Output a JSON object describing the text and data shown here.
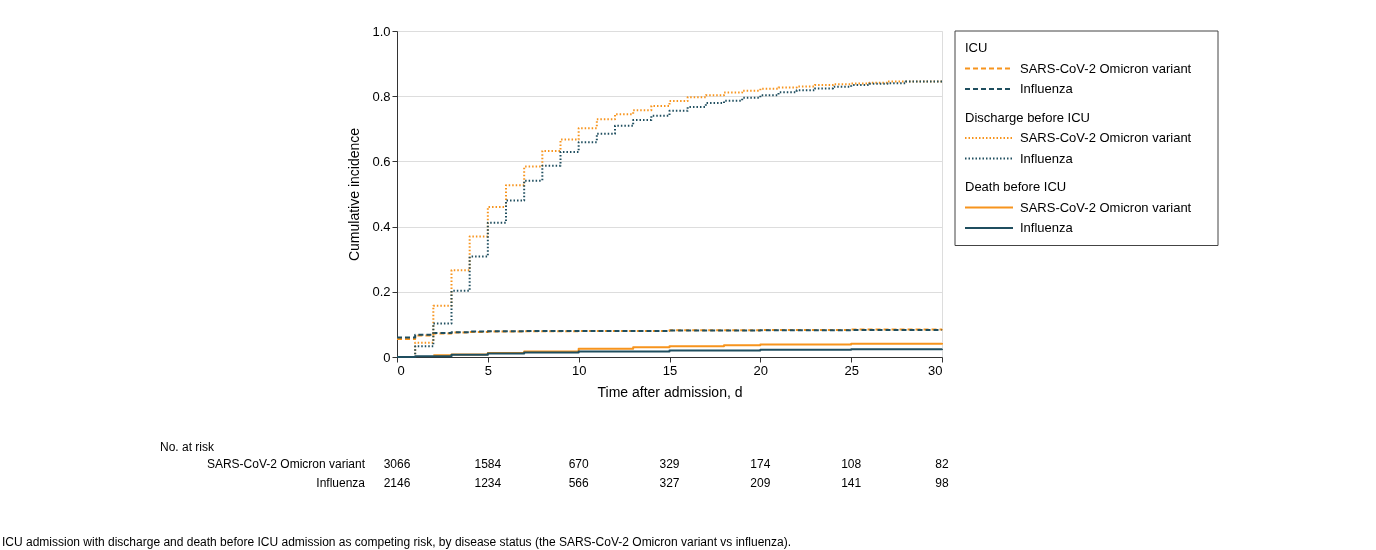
{
  "chart_data": {
    "type": "step",
    "xlabel": "Time after admission, d",
    "ylabel": "Cumulative incidence",
    "xlim": [
      0,
      30
    ],
    "xticks": [
      0,
      5,
      10,
      15,
      20,
      25,
      30
    ],
    "ylim": [
      0,
      1
    ],
    "yticks": [
      {
        "value": 0,
        "label": "0"
      },
      0.2,
      0.4,
      0.6,
      0.8,
      {
        "value": 1,
        "label": "1.0"
      }
    ],
    "grid": "y",
    "legend": "right",
    "series": [
      {
        "name": "SARS-CoV-2 Omicron variant",
        "color": "#f7941d",
        "line_style": "dashed",
        "x": [
          0,
          1,
          2,
          3,
          4,
          5,
          7,
          10,
          15,
          20,
          25,
          30
        ],
        "values": [
          0.055,
          0.066,
          0.072,
          0.075,
          0.077,
          0.078,
          0.079,
          0.08,
          0.082,
          0.083,
          0.084,
          0.085
        ]
      },
      {
        "name": "Influenza",
        "color": "#1f4e5f",
        "line_style": "dashed",
        "x": [
          0,
          1,
          2,
          3,
          4,
          5,
          7,
          10,
          15,
          20,
          25,
          30
        ],
        "values": [
          0.06,
          0.068,
          0.074,
          0.076,
          0.078,
          0.079,
          0.08,
          0.08,
          0.081,
          0.082,
          0.083,
          0.083
        ]
      },
      {
        "name": "SARS-CoV-2 Omicron variant",
        "color": "#f7941d",
        "line_style": "dotted",
        "x": [
          0,
          1,
          2,
          3,
          4,
          5,
          6,
          7,
          8,
          9,
          10,
          11,
          12,
          13,
          14,
          15,
          16,
          17,
          18,
          19,
          20,
          21,
          22,
          23,
          24,
          25,
          26,
          27,
          30
        ],
        "values": [
          0,
          0.044,
          0.157,
          0.266,
          0.37,
          0.46,
          0.527,
          0.584,
          0.632,
          0.667,
          0.702,
          0.729,
          0.745,
          0.757,
          0.77,
          0.785,
          0.797,
          0.803,
          0.811,
          0.817,
          0.823,
          0.827,
          0.83,
          0.834,
          0.837,
          0.839,
          0.841,
          0.845,
          0.845
        ]
      },
      {
        "name": "Influenza",
        "color": "#1f4e5f",
        "line_style": "dotted",
        "x": [
          0,
          1,
          2,
          3,
          4,
          5,
          6,
          7,
          8,
          9,
          10,
          11,
          12,
          13,
          14,
          15,
          16,
          17,
          18,
          19,
          20,
          21,
          22,
          23,
          24,
          25,
          26,
          27,
          28,
          30
        ],
        "values": [
          0,
          0.033,
          0.103,
          0.203,
          0.308,
          0.412,
          0.48,
          0.541,
          0.587,
          0.629,
          0.659,
          0.685,
          0.709,
          0.727,
          0.74,
          0.755,
          0.767,
          0.779,
          0.786,
          0.795,
          0.803,
          0.812,
          0.818,
          0.824,
          0.829,
          0.834,
          0.838,
          0.84,
          0.845,
          0.845
        ]
      },
      {
        "name": "SARS-CoV-2 Omicron variant",
        "color": "#f7941d",
        "line_style": "solid",
        "x": [
          2,
          3,
          5,
          7,
          10,
          13,
          15,
          18,
          20,
          25,
          30
        ],
        "values": [
          0.005,
          0.008,
          0.012,
          0.017,
          0.025,
          0.03,
          0.033,
          0.036,
          0.038,
          0.041,
          0.043
        ]
      },
      {
        "name": "Influenza",
        "color": "#1f4e5f",
        "line_style": "solid",
        "x": [
          0,
          1,
          3,
          5,
          7,
          10,
          15,
          20,
          25,
          30
        ],
        "values": [
          0,
          0.002,
          0.007,
          0.011,
          0.014,
          0.017,
          0.02,
          0.022,
          0.024,
          0.025
        ]
      }
    ],
    "annotations": [
      "No. at risk",
      "SARS-CoV-2 Omicron variant",
      "Influenza",
      "ICU admission with discharge and death before ICU admission as competing risk, by disease status (the SARS-CoV-2 Omicron variant vs influenza).",
      "ICU",
      "Discharge before ICU",
      "Death before ICU",
      "3066",
      "1584",
      "670",
      "329",
      "174",
      "108",
      "82",
      "2146",
      "1234",
      "566",
      "327",
      "209",
      "141",
      "98"
    ]
  }
}
